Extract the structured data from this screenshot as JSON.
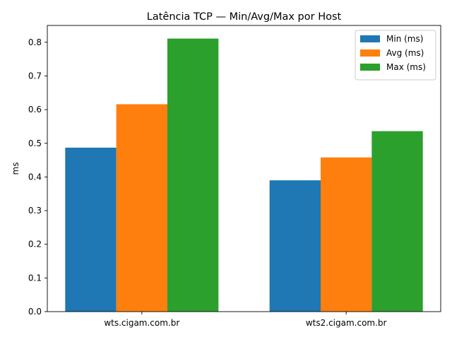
{
  "chart_data": {
    "type": "bar",
    "title": "Latência TCP — Min/Avg/Max por Host",
    "xlabel": "",
    "ylabel": "ms",
    "categories": [
      "wts.cigam.com.br",
      "wts2.cigam.com.br"
    ],
    "series": [
      {
        "name": "Min (ms)",
        "values": [
          0.487,
          0.39
        ],
        "color": "#1f77b4"
      },
      {
        "name": "Avg (ms)",
        "values": [
          0.616,
          0.458
        ],
        "color": "#ff7f0e"
      },
      {
        "name": "Max (ms)",
        "values": [
          0.811,
          0.536
        ],
        "color": "#2ca02c"
      }
    ],
    "ylim": [
      0,
      0.85
    ],
    "yticks": [
      0.0,
      0.1,
      0.2,
      0.3,
      0.4,
      0.5,
      0.6,
      0.7,
      0.8
    ],
    "ytick_labels": [
      "0.0",
      "0.1",
      "0.2",
      "0.3",
      "0.4",
      "0.5",
      "0.6",
      "0.7",
      "0.8"
    ],
    "grid": false,
    "legend_position": "top-right"
  }
}
